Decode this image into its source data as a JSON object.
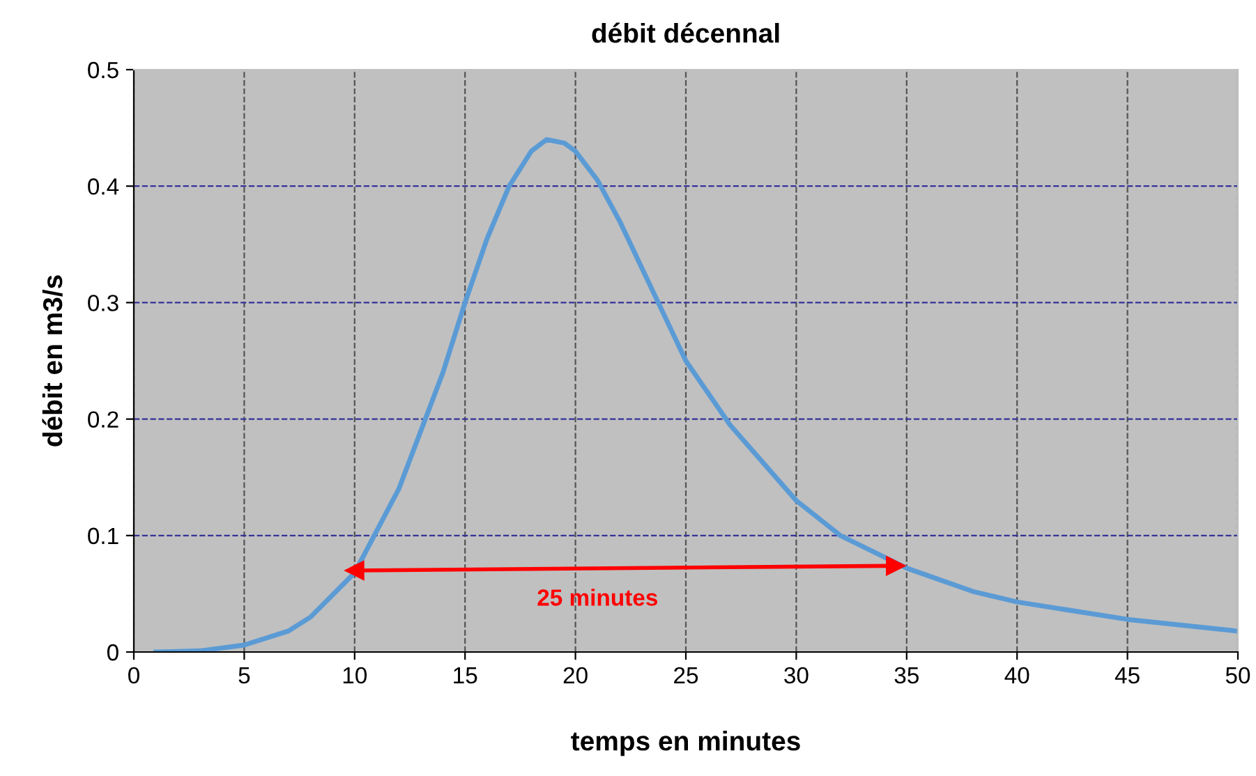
{
  "chart_data": {
    "type": "line",
    "title": "débit décennal",
    "xlabel": "temps en minutes",
    "ylabel": "débit en m3/s",
    "xlim": [
      0,
      50
    ],
    "xticks": [
      0,
      5,
      10,
      15,
      20,
      25,
      30,
      35,
      40,
      45,
      50
    ],
    "ylim": [
      0,
      0.5
    ],
    "yticks": [
      0,
      0.1,
      0.2,
      0.3,
      0.4,
      0.5
    ],
    "grid": true,
    "series": [
      {
        "color": "#5b9bd5",
        "x": [
          1,
          3,
          5,
          7,
          8,
          10,
          12,
          14,
          15,
          16,
          17,
          18,
          18.7,
          19.5,
          20,
          21,
          22,
          23,
          24,
          25,
          27,
          30,
          32,
          35,
          38,
          40,
          45,
          50
        ],
        "values": [
          0,
          0.001,
          0.006,
          0.018,
          0.03,
          0.068,
          0.14,
          0.24,
          0.3,
          0.355,
          0.4,
          0.43,
          0.44,
          0.437,
          0.43,
          0.405,
          0.37,
          0.33,
          0.29,
          0.25,
          0.195,
          0.13,
          0.1,
          0.072,
          0.052,
          0.043,
          0.028,
          0.018
        ]
      },
      {
        "type": "line",
        "color": "#ff0000",
        "marker": "triangle",
        "x": [
          10,
          34.5
        ],
        "values": [
          0.07,
          0.074
        ]
      }
    ],
    "annotations": [
      "25 minutes"
    ]
  }
}
